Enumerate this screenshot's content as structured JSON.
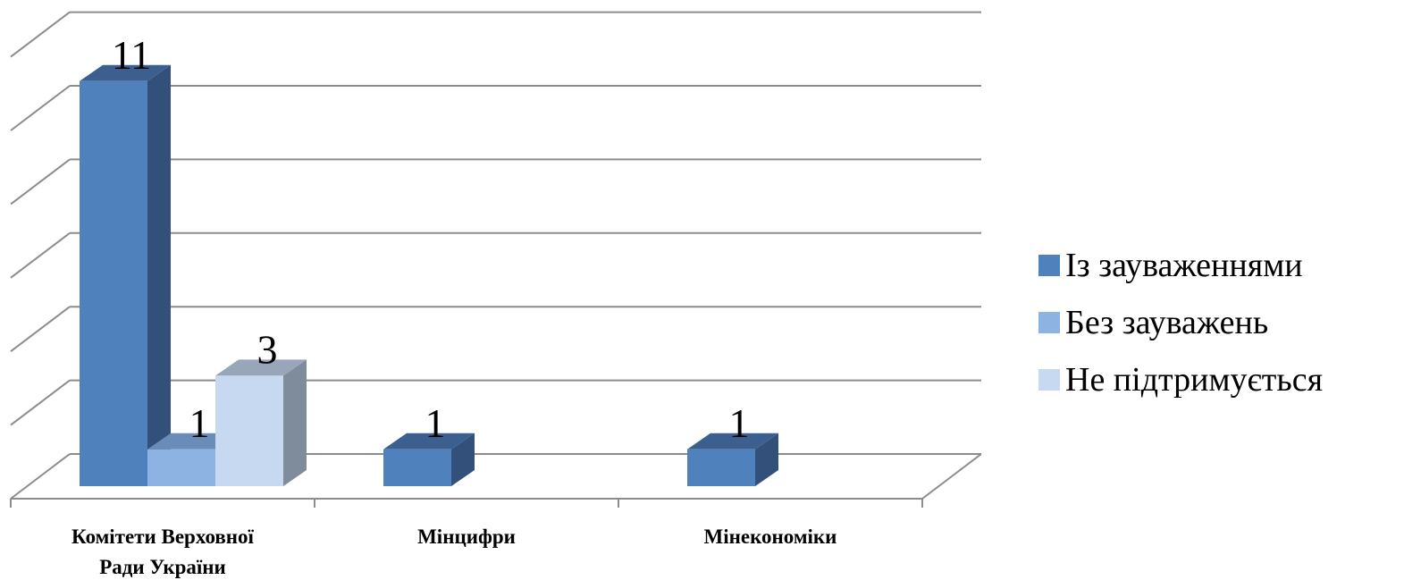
{
  "chart_data": {
    "type": "bar",
    "three_d": true,
    "categories": [
      [
        "Комітети Верховної",
        "Ради України"
      ],
      [
        "Мінцифри"
      ],
      [
        "Мінекономіки"
      ]
    ],
    "series": [
      {
        "name": "Із зауваженнями",
        "values": [
          11,
          1,
          1
        ],
        "color": "#4F81BD",
        "side_color": "#32507A",
        "top_color": "#3B5F8F"
      },
      {
        "name": "Без зауважень",
        "values": [
          1,
          0,
          0
        ],
        "color": "#8DB3E2",
        "side_color": "#5A7CA6",
        "top_color": "#6A8CB8"
      },
      {
        "name": "Не підтримується",
        "values": [
          3,
          0,
          0
        ],
        "color": "#C6D9F1",
        "side_color": "#7F8C9B",
        "top_color": "#97A6B8"
      }
    ],
    "ylim": [
      0,
      12
    ],
    "y_tick_step": 2,
    "grid": true,
    "legend_position": "right",
    "title": "",
    "xlabel": "",
    "ylabel": ""
  }
}
